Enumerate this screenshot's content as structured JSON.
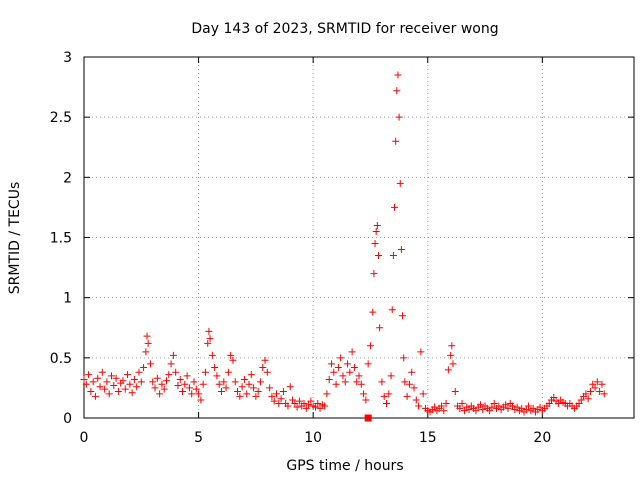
{
  "chart_data": {
    "type": "scatter",
    "title": "Day 143 of 2023, SRMTID for receiver wong",
    "xlabel": "GPS time / hours",
    "ylabel": "SRMTID / TECUs",
    "xlim": [
      0,
      24
    ],
    "ylim": [
      0,
      3
    ],
    "xticks": [
      0,
      5,
      10,
      15,
      20
    ],
    "yticks": [
      0,
      0.5,
      1,
      1.5,
      2,
      2.5,
      3
    ],
    "grid": true,
    "marker": "+",
    "color": "#ff0000",
    "series": [
      {
        "name": "SRMTID",
        "points": [
          [
            0.0,
            0.32
          ],
          [
            0.1,
            0.28
          ],
          [
            0.2,
            0.36
          ],
          [
            0.3,
            0.22
          ],
          [
            0.4,
            0.3
          ],
          [
            0.5,
            0.18
          ],
          [
            0.6,
            0.33
          ],
          [
            0.7,
            0.26
          ],
          [
            0.8,
            0.38
          ],
          [
            0.9,
            0.24
          ],
          [
            1.0,
            0.3
          ],
          [
            1.1,
            0.2
          ],
          [
            1.2,
            0.35
          ],
          [
            1.3,
            0.27
          ],
          [
            1.4,
            0.33
          ],
          [
            1.5,
            0.22
          ],
          [
            1.6,
            0.29
          ],
          [
            1.7,
            0.31
          ],
          [
            1.8,
            0.24
          ],
          [
            1.9,
            0.36
          ],
          [
            2.0,
            0.28
          ],
          [
            2.1,
            0.21
          ],
          [
            2.2,
            0.32
          ],
          [
            2.3,
            0.26
          ],
          [
            2.4,
            0.38
          ],
          [
            2.5,
            0.3
          ],
          [
            2.6,
            0.42
          ],
          [
            2.7,
            0.55
          ],
          [
            2.75,
            0.68
          ],
          [
            2.8,
            0.62
          ],
          [
            2.9,
            0.45
          ],
          [
            3.0,
            0.3
          ],
          [
            3.1,
            0.25
          ],
          [
            3.2,
            0.33
          ],
          [
            3.3,
            0.2
          ],
          [
            3.4,
            0.28
          ],
          [
            3.5,
            0.24
          ],
          [
            3.6,
            0.31
          ],
          [
            3.7,
            0.36
          ],
          [
            3.8,
            0.45
          ],
          [
            3.9,
            0.52
          ],
          [
            4.0,
            0.38
          ],
          [
            4.1,
            0.27
          ],
          [
            4.2,
            0.32
          ],
          [
            4.3,
            0.22
          ],
          [
            4.4,
            0.28
          ],
          [
            4.5,
            0.35
          ],
          [
            4.6,
            0.25
          ],
          [
            4.7,
            0.2
          ],
          [
            4.8,
            0.3
          ],
          [
            4.9,
            0.24
          ],
          [
            5.0,
            0.2
          ],
          [
            5.1,
            0.15
          ],
          [
            5.2,
            0.28
          ],
          [
            5.3,
            0.38
          ],
          [
            5.4,
            0.62
          ],
          [
            5.45,
            0.72
          ],
          [
            5.5,
            0.66
          ],
          [
            5.6,
            0.52
          ],
          [
            5.7,
            0.42
          ],
          [
            5.8,
            0.35
          ],
          [
            5.9,
            0.28
          ],
          [
            6.0,
            0.22
          ],
          [
            6.1,
            0.3
          ],
          [
            6.2,
            0.25
          ],
          [
            6.3,
            0.38
          ],
          [
            6.4,
            0.52
          ],
          [
            6.5,
            0.48
          ],
          [
            6.6,
            0.3
          ],
          [
            6.7,
            0.22
          ],
          [
            6.8,
            0.18
          ],
          [
            6.9,
            0.26
          ],
          [
            7.0,
            0.32
          ],
          [
            7.1,
            0.2
          ],
          [
            7.2,
            0.28
          ],
          [
            7.3,
            0.36
          ],
          [
            7.4,
            0.25
          ],
          [
            7.5,
            0.18
          ],
          [
            7.6,
            0.22
          ],
          [
            7.7,
            0.3
          ],
          [
            7.8,
            0.42
          ],
          [
            7.9,
            0.48
          ],
          [
            8.0,
            0.38
          ],
          [
            8.1,
            0.25
          ],
          [
            8.2,
            0.18
          ],
          [
            8.3,
            0.14
          ],
          [
            8.4,
            0.2
          ],
          [
            8.5,
            0.12
          ],
          [
            8.6,
            0.16
          ],
          [
            8.7,
            0.22
          ],
          [
            8.8,
            0.12
          ],
          [
            8.9,
            0.1
          ],
          [
            9.0,
            0.26
          ],
          [
            9.1,
            0.15
          ],
          [
            9.2,
            0.12
          ],
          [
            9.3,
            0.09
          ],
          [
            9.4,
            0.14
          ],
          [
            9.5,
            0.1
          ],
          [
            9.6,
            0.12
          ],
          [
            9.7,
            0.08
          ],
          [
            9.8,
            0.11
          ],
          [
            9.9,
            0.14
          ],
          [
            10.0,
            0.1
          ],
          [
            10.1,
            0.09
          ],
          [
            10.2,
            0.12
          ],
          [
            10.3,
            0.08
          ],
          [
            10.4,
            0.11
          ],
          [
            10.5,
            0.1
          ],
          [
            10.6,
            0.2
          ],
          [
            10.7,
            0.32
          ],
          [
            10.8,
            0.45
          ],
          [
            10.9,
            0.38
          ],
          [
            11.0,
            0.28
          ],
          [
            11.1,
            0.42
          ],
          [
            11.2,
            0.5
          ],
          [
            11.3,
            0.35
          ],
          [
            11.4,
            0.3
          ],
          [
            11.5,
            0.45
          ],
          [
            11.6,
            0.38
          ],
          [
            11.7,
            0.55
          ],
          [
            11.8,
            0.42
          ],
          [
            11.9,
            0.3
          ],
          [
            12.0,
            0.35
          ],
          [
            12.1,
            0.28
          ],
          [
            12.2,
            0.2
          ],
          [
            12.3,
            0.15
          ],
          [
            12.4,
            0.45
          ],
          [
            12.5,
            0.6
          ],
          [
            12.6,
            0.88
          ],
          [
            12.65,
            1.2
          ],
          [
            12.7,
            1.45
          ],
          [
            12.75,
            1.55
          ],
          [
            12.8,
            1.6
          ],
          [
            12.85,
            1.35
          ],
          [
            12.9,
            0.75
          ],
          [
            13.0,
            0.3
          ],
          [
            13.1,
            0.18
          ],
          [
            13.2,
            0.12
          ],
          [
            13.3,
            0.2
          ],
          [
            13.4,
            0.35
          ],
          [
            13.45,
            0.9
          ],
          [
            13.5,
            1.35
          ],
          [
            13.55,
            1.75
          ],
          [
            13.6,
            2.3
          ],
          [
            13.65,
            2.72
          ],
          [
            13.7,
            2.85
          ],
          [
            13.75,
            2.5
          ],
          [
            13.8,
            1.95
          ],
          [
            13.85,
            1.4
          ],
          [
            13.9,
            0.85
          ],
          [
            13.95,
            0.5
          ],
          [
            14.0,
            0.3
          ],
          [
            14.1,
            0.18
          ],
          [
            14.2,
            0.28
          ],
          [
            14.3,
            0.38
          ],
          [
            14.4,
            0.25
          ],
          [
            14.5,
            0.15
          ],
          [
            14.6,
            0.1
          ],
          [
            14.7,
            0.55
          ],
          [
            14.8,
            0.2
          ],
          [
            14.9,
            0.08
          ],
          [
            15.0,
            0.06
          ],
          [
            15.1,
            0.05
          ],
          [
            15.2,
            0.07
          ],
          [
            15.3,
            0.09
          ],
          [
            15.4,
            0.06
          ],
          [
            15.5,
            0.08
          ],
          [
            15.6,
            0.1
          ],
          [
            15.7,
            0.06
          ],
          [
            15.8,
            0.12
          ],
          [
            15.9,
            0.4
          ],
          [
            16.0,
            0.52
          ],
          [
            16.05,
            0.6
          ],
          [
            16.1,
            0.45
          ],
          [
            16.2,
            0.22
          ],
          [
            16.3,
            0.1
          ],
          [
            16.4,
            0.08
          ],
          [
            16.5,
            0.12
          ],
          [
            16.6,
            0.06
          ],
          [
            16.7,
            0.09
          ],
          [
            16.8,
            0.07
          ],
          [
            16.9,
            0.1
          ],
          [
            17.0,
            0.08
          ],
          [
            17.1,
            0.06
          ],
          [
            17.2,
            0.09
          ],
          [
            17.3,
            0.11
          ],
          [
            17.4,
            0.07
          ],
          [
            17.5,
            0.1
          ],
          [
            17.6,
            0.08
          ],
          [
            17.7,
            0.06
          ],
          [
            17.8,
            0.09
          ],
          [
            17.9,
            0.12
          ],
          [
            18.0,
            0.08
          ],
          [
            18.1,
            0.1
          ],
          [
            18.2,
            0.07
          ],
          [
            18.3,
            0.09
          ],
          [
            18.4,
            0.11
          ],
          [
            18.5,
            0.08
          ],
          [
            18.6,
            0.12
          ],
          [
            18.7,
            0.1
          ],
          [
            18.8,
            0.07
          ],
          [
            18.9,
            0.09
          ],
          [
            19.0,
            0.06
          ],
          [
            19.1,
            0.08
          ],
          [
            19.2,
            0.05
          ],
          [
            19.3,
            0.07
          ],
          [
            19.4,
            0.1
          ],
          [
            19.5,
            0.06
          ],
          [
            19.6,
            0.08
          ],
          [
            19.7,
            0.05
          ],
          [
            19.8,
            0.07
          ],
          [
            19.9,
            0.09
          ],
          [
            20.0,
            0.06
          ],
          [
            20.1,
            0.08
          ],
          [
            20.2,
            0.1
          ],
          [
            20.3,
            0.12
          ],
          [
            20.4,
            0.15
          ],
          [
            20.5,
            0.17
          ],
          [
            20.6,
            0.14
          ],
          [
            20.7,
            0.12
          ],
          [
            20.8,
            0.15
          ],
          [
            20.9,
            0.13
          ],
          [
            21.0,
            0.12
          ],
          [
            21.1,
            0.1
          ],
          [
            21.2,
            0.12
          ],
          [
            21.3,
            0.1
          ],
          [
            21.4,
            0.08
          ],
          [
            21.5,
            0.1
          ],
          [
            21.6,
            0.12
          ],
          [
            21.7,
            0.15
          ],
          [
            21.8,
            0.18
          ],
          [
            21.9,
            0.2
          ],
          [
            22.0,
            0.16
          ],
          [
            22.1,
            0.22
          ],
          [
            22.2,
            0.28
          ],
          [
            22.3,
            0.25
          ],
          [
            22.4,
            0.3
          ],
          [
            22.5,
            0.22
          ],
          [
            22.6,
            0.28
          ],
          [
            22.7,
            0.2
          ]
        ]
      },
      {
        "name": "marker",
        "marker": "square",
        "points": [
          [
            12.4,
            0.0
          ]
        ]
      }
    ]
  }
}
